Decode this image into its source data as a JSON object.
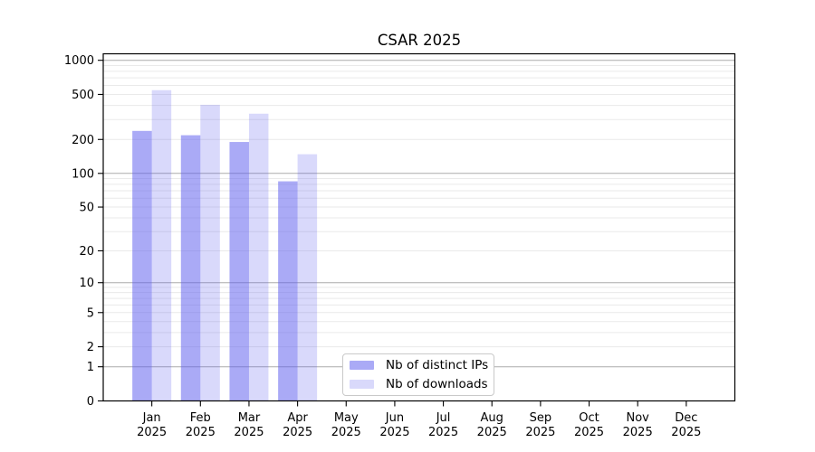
{
  "chart_data": {
    "type": "bar",
    "title": "CSAR 2025",
    "categories": [
      "Jan 2025",
      "Feb 2025",
      "Mar 2025",
      "Apr 2025",
      "May 2025",
      "Jun 2025",
      "Jul 2025",
      "Aug 2025",
      "Sep 2025",
      "Oct 2025",
      "Nov 2025",
      "Dec 2025"
    ],
    "series": [
      {
        "name": "Nb of distinct IPs",
        "key": "distinct-ips",
        "bar_color": "rgba(95,95,238,0.53)",
        "legend_color": "#aaaaf6",
        "values": [
          238,
          218,
          190,
          85,
          null,
          null,
          null,
          null,
          null,
          null,
          null,
          null
        ]
      },
      {
        "name": "Nb of downloads",
        "key": "downloads",
        "bar_color": "rgba(95,95,238,0.235)",
        "legend_color": "#d9d9fb",
        "values": [
          545,
          405,
          338,
          148,
          null,
          null,
          null,
          null,
          null,
          null,
          null,
          null
        ]
      }
    ],
    "xlabel": "",
    "ylabel": "",
    "y_axis": {
      "scale": "log1p",
      "ticks": [
        0,
        1,
        2,
        5,
        10,
        20,
        50,
        100,
        200,
        500,
        1000
      ],
      "ylim": [
        0,
        1140
      ]
    },
    "grid": {
      "major_values": [
        1,
        10,
        100,
        1000
      ],
      "major_color": "#ababab",
      "minor_values": [
        2,
        3,
        4,
        5,
        6,
        7,
        8,
        9,
        20,
        30,
        40,
        50,
        60,
        70,
        80,
        90,
        200,
        300,
        400,
        500,
        600,
        700,
        800,
        900
      ],
      "minor_color": "#eaeaea"
    },
    "legend_position": "lower center",
    "background": "#ffffff",
    "spine_color": "#000000",
    "tick_color": "#000000"
  }
}
